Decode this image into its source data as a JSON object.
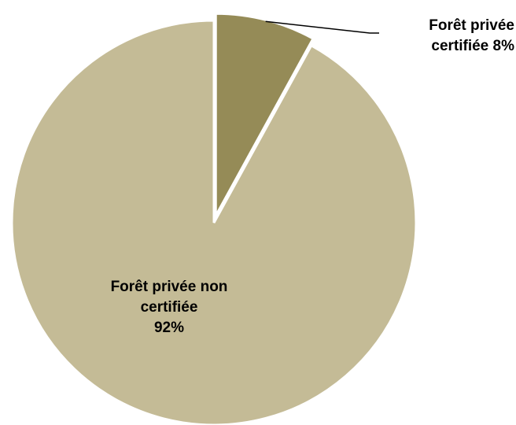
{
  "chart_data": {
    "type": "pie",
    "categories": [
      "Forêt privée certifiée",
      "Forêt privée non certifiée"
    ],
    "values": [
      8,
      92
    ],
    "value_labels": [
      "8%",
      "92%"
    ],
    "colors": [
      "#958b57",
      "#c4bb96"
    ]
  }
}
